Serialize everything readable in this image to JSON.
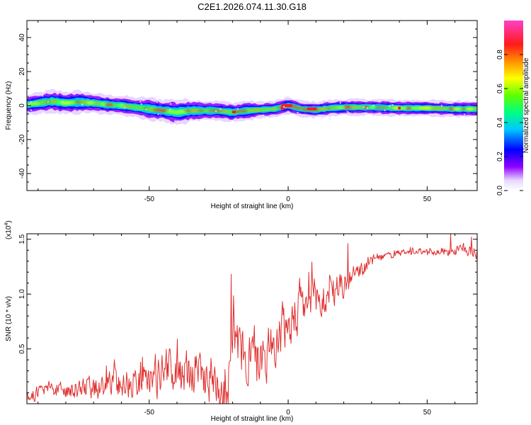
{
  "title": "C2E1.2026.074.11.30.G18",
  "chart_data": [
    {
      "type": "heatmap",
      "name": "spectrogram",
      "xlabel": "Height of straight line (km)",
      "ylabel": "Frequency (Hz)",
      "xlim": [
        -94,
        68
      ],
      "ylim": [
        -50,
        50
      ],
      "xticks": [
        -50,
        0,
        50
      ],
      "xtick_labels": [
        "-50",
        "0",
        "50"
      ],
      "yticks": [
        -40,
        -20,
        0,
        20,
        40
      ],
      "ytick_labels": [
        "-40",
        "-20",
        "0",
        "20",
        "40"
      ],
      "ridge": {
        "x": [
          -94,
          -85,
          -80,
          -75,
          -70,
          -65,
          -60,
          -55,
          -50,
          -45,
          -40,
          -35,
          -30,
          -25,
          -20,
          -15,
          -10,
          -5,
          0,
          5,
          10,
          15,
          20,
          25,
          30,
          40,
          50,
          60,
          67
        ],
        "y": [
          0.5,
          2.5,
          1.5,
          2.0,
          1.5,
          0.5,
          0.0,
          -1.0,
          -2.0,
          -3.0,
          -4.0,
          -3.0,
          -3.0,
          -3.0,
          -4.0,
          -3.0,
          -2.5,
          -2.0,
          0.0,
          -2.0,
          -2.5,
          -1.5,
          -1.0,
          -1.0,
          -1.0,
          -1.5,
          -1.5,
          -2.0,
          -2.0
        ],
        "width_hz": [
          3.0,
          3.5,
          3.5,
          3.5,
          3.0,
          3.0,
          3.0,
          3.0,
          3.5,
          3.5,
          4.0,
          3.5,
          3.0,
          3.0,
          3.0,
          3.0,
          2.5,
          2.5,
          2.5,
          2.5,
          2.5,
          2.5,
          2.5,
          2.5,
          2.5,
          2.5,
          2.5,
          2.5,
          2.5
        ]
      },
      "colorbar": {
        "label": "Normalized spectral amplitude",
        "range": [
          0.0,
          1.0
        ],
        "ticks": [
          0.0,
          0.2,
          0.4,
          0.6,
          0.8
        ],
        "tick_labels": [
          "0.0",
          "0.2",
          "0.4",
          "0.6",
          "0.8"
        ],
        "colors": [
          "#ffffff",
          "#a000ff",
          "#0000ff",
          "#00ccff",
          "#00ff80",
          "#80ff00",
          "#ffff00",
          "#ffaa00",
          "#ff2020",
          "#ff2080",
          "#ff40c0"
        ]
      }
    },
    {
      "type": "line",
      "name": "snr",
      "xlabel": "Height of straight line (km)",
      "ylabel": "SNR (10 * v/v)",
      "scale_label": "(x10",
      "scale_exponent": "4",
      "scale_close": ")",
      "xlim": [
        -94,
        68
      ],
      "ylim": [
        0,
        1.55
      ],
      "xticks": [
        -50,
        0,
        50
      ],
      "xtick_labels": [
        "-50",
        "0",
        "50"
      ],
      "yticks": [
        0.5,
        1.0,
        1.5
      ],
      "ytick_labels": [
        "0.5",
        "1.0",
        "1.5"
      ],
      "color": "#e03030",
      "trend": {
        "x": [
          -94,
          -90,
          -85,
          -80,
          -75,
          -70,
          -65,
          -60,
          -55,
          -50,
          -45,
          -40,
          -35,
          -30,
          -25,
          -22,
          -20,
          -15,
          -10,
          -5,
          0,
          5,
          10,
          15,
          20,
          25,
          30,
          35,
          40,
          45,
          50,
          55,
          60,
          65,
          68
        ],
        "y": [
          0.06,
          0.1,
          0.14,
          0.12,
          0.11,
          0.14,
          0.16,
          0.2,
          0.22,
          0.24,
          0.28,
          0.3,
          0.28,
          0.26,
          0.2,
          0.18,
          0.5,
          0.45,
          0.4,
          0.55,
          0.7,
          0.88,
          0.92,
          1.0,
          1.08,
          1.18,
          1.3,
          1.35,
          1.37,
          1.38,
          1.38,
          1.39,
          1.4,
          1.4,
          1.4
        ]
      },
      "noise_amplitude": {
        "x": [
          -94,
          -75,
          -60,
          -40,
          -25,
          -22,
          -15,
          -5,
          5,
          15,
          25,
          35,
          50,
          60,
          68
        ],
        "y": [
          0.05,
          0.09,
          0.14,
          0.2,
          0.22,
          0.28,
          0.26,
          0.22,
          0.22,
          0.18,
          0.08,
          0.03,
          0.03,
          0.05,
          0.07
        ]
      },
      "peaks": [
        {
          "x": -20.5,
          "y": 1.18
        },
        {
          "x": 7.5,
          "y": 1.2
        },
        {
          "x": 21.5,
          "y": 1.46
        },
        {
          "x": 58.5,
          "y": 1.55
        },
        {
          "x": 66.0,
          "y": 1.52
        }
      ]
    }
  ]
}
